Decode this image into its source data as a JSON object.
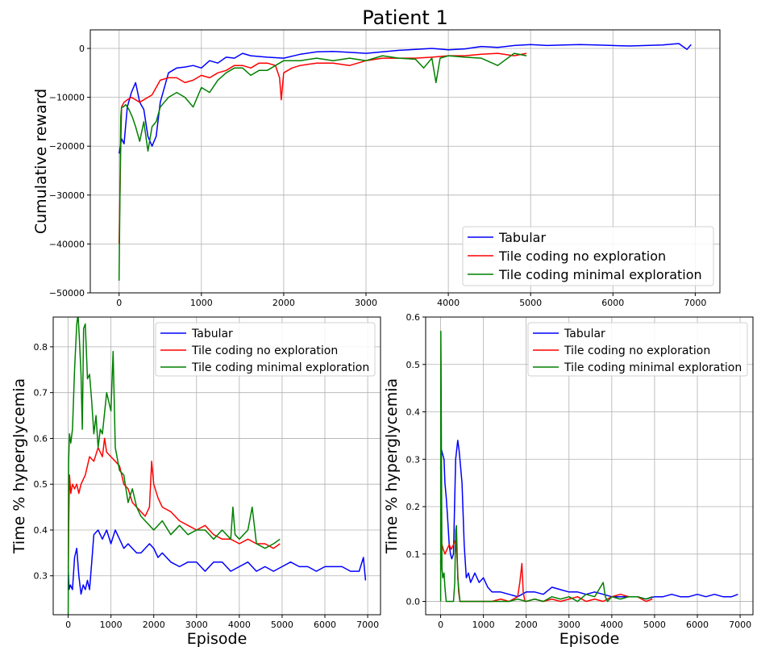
{
  "chart_data": [
    {
      "type": "line",
      "title": "Patient 1",
      "xlabel": "",
      "ylabel": "Cumulative reward",
      "xlim": [
        -350,
        7300
      ],
      "ylim": [
        -50000,
        3800
      ],
      "xticks": [
        "0",
        "1000",
        "2000",
        "3000",
        "4000",
        "5000",
        "6000",
        "7000"
      ],
      "yticks": [
        "−50000",
        "−40000",
        "−30000",
        "−20000",
        "−10000",
        "0"
      ],
      "xtick_values": [
        0,
        1000,
        2000,
        3000,
        4000,
        5000,
        6000,
        7000
      ],
      "ytick_values": [
        -50000,
        -40000,
        -30000,
        -20000,
        -10000,
        0
      ],
      "grid": true,
      "legend": "bottom-right",
      "series": [
        {
          "name": "Tabular",
          "color": "#0000ff",
          "x": [
            0,
            30,
            60,
            100,
            150,
            200,
            250,
            300,
            350,
            400,
            450,
            500,
            600,
            700,
            800,
            900,
            1000,
            1100,
            1200,
            1300,
            1400,
            1500,
            1600,
            1800,
            2000,
            2200,
            2400,
            2600,
            2800,
            3000,
            3200,
            3400,
            3600,
            3800,
            4000,
            4200,
            4400,
            4600,
            4800,
            5000,
            5200,
            5400,
            5600,
            5800,
            6000,
            6200,
            6400,
            6600,
            6800,
            6900,
            6950
          ],
          "y": [
            -21500,
            -18500,
            -19500,
            -12000,
            -9000,
            -7000,
            -11000,
            -12500,
            -18000,
            -20000,
            -18000,
            -11000,
            -5000,
            -4000,
            -3800,
            -3500,
            -4000,
            -2500,
            -3000,
            -1800,
            -2000,
            -1000,
            -1500,
            -1800,
            -2000,
            -1200,
            -700,
            -600,
            -800,
            -1000,
            -700,
            -400,
            -200,
            0,
            -300,
            -100,
            400,
            200,
            600,
            800,
            600,
            700,
            800,
            700,
            600,
            500,
            600,
            700,
            1000,
            -200,
            800
          ]
        },
        {
          "name": "Tile coding no exploration",
          "color": "#ff0000",
          "x": [
            0,
            10,
            20,
            30,
            60,
            100,
            150,
            200,
            250,
            300,
            400,
            500,
            600,
            700,
            800,
            900,
            1000,
            1100,
            1200,
            1300,
            1400,
            1500,
            1600,
            1700,
            1800,
            1900,
            1950,
            1970,
            2000,
            2100,
            2200,
            2400,
            2600,
            2800,
            3000,
            3200,
            3400,
            3600,
            3800,
            4000,
            4200,
            4400,
            4600,
            4800,
            4950
          ],
          "y": [
            -40000,
            -30000,
            -20000,
            -12000,
            -11000,
            -10500,
            -10000,
            -10500,
            -11000,
            -10500,
            -9500,
            -6500,
            -6000,
            -6000,
            -7000,
            -6500,
            -5500,
            -6000,
            -5000,
            -4500,
            -3500,
            -3500,
            -4000,
            -3000,
            -3000,
            -3500,
            -6000,
            -10500,
            -5000,
            -4000,
            -3500,
            -3000,
            -3000,
            -3500,
            -2500,
            -2000,
            -2000,
            -2000,
            -1800,
            -1500,
            -1500,
            -1200,
            -1000,
            -1500,
            -1000
          ]
        },
        {
          "name": "Tile coding minimal exploration",
          "color": "#008000",
          "x": [
            0,
            10,
            20,
            30,
            50,
            80,
            120,
            160,
            200,
            250,
            300,
            350,
            400,
            450,
            500,
            550,
            600,
            700,
            800,
            900,
            1000,
            1100,
            1200,
            1300,
            1400,
            1500,
            1600,
            1700,
            1800,
            1900,
            2000,
            2200,
            2400,
            2600,
            2800,
            3000,
            3200,
            3400,
            3600,
            3700,
            3800,
            3850,
            3900,
            4000,
            4200,
            4400,
            4600,
            4800,
            4950
          ],
          "y": [
            -47500,
            -30000,
            -14000,
            -12000,
            -12000,
            -11500,
            -12500,
            -14000,
            -16000,
            -19000,
            -15000,
            -21000,
            -16000,
            -15000,
            -12000,
            -11000,
            -10000,
            -9000,
            -10000,
            -12000,
            -8000,
            -9000,
            -6500,
            -5000,
            -4000,
            -4000,
            -5500,
            -4500,
            -4500,
            -3500,
            -2500,
            -2500,
            -2000,
            -2500,
            -2000,
            -2500,
            -1500,
            -2000,
            -2200,
            -4000,
            -2000,
            -7000,
            -2000,
            -1500,
            -1800,
            -2000,
            -3500,
            -1000,
            -1500
          ]
        }
      ]
    },
    {
      "type": "line",
      "title": "",
      "xlabel": "Episode",
      "ylabel": "Time % hyperglycemia",
      "xlim": [
        -350,
        7300
      ],
      "ylim": [
        0.215,
        0.865
      ],
      "xticks": [
        "0",
        "1000",
        "2000",
        "3000",
        "4000",
        "5000",
        "6000",
        "7000"
      ],
      "yticks": [
        "0.3",
        "0.4",
        "0.5",
        "0.6",
        "0.7",
        "0.8"
      ],
      "xtick_values": [
        0,
        1000,
        2000,
        3000,
        4000,
        5000,
        6000,
        7000
      ],
      "ytick_values": [
        0.3,
        0.4,
        0.5,
        0.6,
        0.7,
        0.8
      ],
      "grid": true,
      "legend": "top-right",
      "series": [
        {
          "name": "Tabular",
          "color": "#0000ff",
          "x": [
            0,
            20,
            50,
            100,
            150,
            200,
            250,
            300,
            350,
            400,
            450,
            500,
            550,
            600,
            700,
            800,
            900,
            1000,
            1100,
            1200,
            1300,
            1400,
            1500,
            1600,
            1700,
            1800,
            1900,
            2000,
            2100,
            2200,
            2400,
            2600,
            2800,
            3000,
            3200,
            3400,
            3600,
            3800,
            4000,
            4200,
            4400,
            4600,
            4800,
            5000,
            5200,
            5400,
            5600,
            5800,
            6000,
            6200,
            6400,
            6600,
            6800,
            6900,
            6950
          ],
          "y": [
            0.32,
            0.27,
            0.28,
            0.27,
            0.34,
            0.36,
            0.3,
            0.26,
            0.28,
            0.27,
            0.29,
            0.27,
            0.33,
            0.39,
            0.4,
            0.38,
            0.4,
            0.37,
            0.4,
            0.38,
            0.36,
            0.37,
            0.36,
            0.35,
            0.35,
            0.36,
            0.37,
            0.36,
            0.34,
            0.35,
            0.33,
            0.32,
            0.33,
            0.33,
            0.31,
            0.33,
            0.33,
            0.31,
            0.32,
            0.33,
            0.31,
            0.32,
            0.31,
            0.32,
            0.33,
            0.32,
            0.32,
            0.31,
            0.32,
            0.32,
            0.32,
            0.31,
            0.31,
            0.34,
            0.29
          ]
        },
        {
          "name": "Tile coding no exploration",
          "color": "#ff0000",
          "x": [
            0,
            10,
            30,
            60,
            100,
            150,
            200,
            250,
            300,
            400,
            500,
            600,
            700,
            800,
            850,
            900,
            1000,
            1100,
            1200,
            1300,
            1400,
            1500,
            1600,
            1700,
            1800,
            1900,
            1950,
            2000,
            2100,
            2200,
            2400,
            2600,
            2800,
            3000,
            3200,
            3400,
            3600,
            3800,
            4000,
            4200,
            4400,
            4600,
            4800,
            4950
          ],
          "y": [
            0.27,
            0.4,
            0.52,
            0.48,
            0.5,
            0.49,
            0.5,
            0.48,
            0.5,
            0.52,
            0.56,
            0.55,
            0.58,
            0.56,
            0.6,
            0.57,
            0.56,
            0.55,
            0.54,
            0.5,
            0.49,
            0.46,
            0.45,
            0.44,
            0.43,
            0.45,
            0.55,
            0.5,
            0.47,
            0.45,
            0.44,
            0.42,
            0.41,
            0.4,
            0.41,
            0.39,
            0.38,
            0.38,
            0.37,
            0.38,
            0.37,
            0.37,
            0.36,
            0.37
          ]
        },
        {
          "name": "Tile coding minimal exploration",
          "color": "#008000",
          "x": [
            0,
            10,
            30,
            60,
            100,
            150,
            200,
            230,
            260,
            300,
            330,
            360,
            400,
            450,
            500,
            550,
            600,
            650,
            700,
            750,
            800,
            900,
            1000,
            1050,
            1100,
            1200,
            1300,
            1400,
            1500,
            1600,
            1700,
            1800,
            2000,
            2200,
            2400,
            2600,
            2800,
            3000,
            3200,
            3400,
            3600,
            3800,
            3850,
            3900,
            4000,
            4200,
            4300,
            4400,
            4600,
            4800,
            4950
          ],
          "y": [
            0.21,
            0.55,
            0.61,
            0.59,
            0.62,
            0.75,
            0.85,
            0.87,
            0.82,
            0.74,
            0.62,
            0.84,
            0.85,
            0.73,
            0.74,
            0.68,
            0.61,
            0.65,
            0.58,
            0.62,
            0.61,
            0.7,
            0.66,
            0.79,
            0.58,
            0.53,
            0.52,
            0.46,
            0.49,
            0.45,
            0.43,
            0.42,
            0.4,
            0.42,
            0.39,
            0.41,
            0.39,
            0.4,
            0.4,
            0.38,
            0.4,
            0.38,
            0.45,
            0.39,
            0.38,
            0.4,
            0.45,
            0.37,
            0.36,
            0.37,
            0.38
          ]
        }
      ]
    },
    {
      "type": "line",
      "title": "",
      "xlabel": "Episode",
      "ylabel": "Time % hyperglycemia",
      "xlim": [
        -350,
        7300
      ],
      "ylim": [
        -0.028,
        0.6
      ],
      "xticks": [
        "0",
        "1000",
        "2000",
        "3000",
        "4000",
        "5000",
        "6000",
        "7000"
      ],
      "yticks": [
        "0.0",
        "0.1",
        "0.2",
        "0.3",
        "0.4",
        "0.5",
        "0.6"
      ],
      "xtick_values": [
        0,
        1000,
        2000,
        3000,
        4000,
        5000,
        6000,
        7000
      ],
      "ytick_values": [
        0.0,
        0.1,
        0.2,
        0.3,
        0.4,
        0.5,
        0.6
      ],
      "grid": true,
      "legend": "top-right",
      "series": [
        {
          "name": "Tabular",
          "color": "#0000ff",
          "x": [
            0,
            20,
            50,
            80,
            100,
            130,
            160,
            200,
            230,
            260,
            300,
            350,
            400,
            430,
            450,
            500,
            550,
            600,
            650,
            700,
            750,
            800,
            900,
            1000,
            1100,
            1200,
            1400,
            1600,
            1800,
            2000,
            2200,
            2400,
            2600,
            2800,
            3000,
            3200,
            3400,
            3600,
            3800,
            4000,
            4200,
            4400,
            4600,
            4800,
            5000,
            5200,
            5400,
            5600,
            5800,
            6000,
            6200,
            6400,
            6600,
            6800,
            6950
          ],
          "y": [
            0.28,
            0.32,
            0.31,
            0.3,
            0.25,
            0.22,
            0.18,
            0.12,
            0.1,
            0.09,
            0.1,
            0.3,
            0.34,
            0.32,
            0.3,
            0.25,
            0.12,
            0.05,
            0.06,
            0.04,
            0.05,
            0.06,
            0.04,
            0.05,
            0.03,
            0.02,
            0.02,
            0.015,
            0.01,
            0.02,
            0.02,
            0.015,
            0.03,
            0.025,
            0.02,
            0.02,
            0.015,
            0.02,
            0.015,
            0.01,
            0.01,
            0.01,
            0.01,
            0.005,
            0.01,
            0.01,
            0.015,
            0.01,
            0.01,
            0.015,
            0.01,
            0.015,
            0.01,
            0.01,
            0.015
          ]
        },
        {
          "name": "Tile coding no exploration",
          "color": "#ff0000",
          "x": [
            0,
            10,
            30,
            60,
            100,
            150,
            200,
            250,
            300,
            350,
            380,
            420,
            450,
            500,
            600,
            800,
            1000,
            1200,
            1400,
            1600,
            1800,
            1850,
            1900,
            1930,
            1970,
            2000,
            2200,
            2400,
            2600,
            2800,
            3000,
            3200,
            3400,
            3600,
            3800,
            4000,
            4200,
            4400,
            4600,
            4800,
            4950
          ],
          "y": [
            0.08,
            0.11,
            0.12,
            0.11,
            0.1,
            0.11,
            0.12,
            0.11,
            0.12,
            0.13,
            0.1,
            0.02,
            0.0,
            0.0,
            0.0,
            0.0,
            0.0,
            0.0,
            0.005,
            0.0,
            0.01,
            0.04,
            0.08,
            0.02,
            0.0,
            0.0,
            0.005,
            0.0,
            0.005,
            0.0,
            0.005,
            0.01,
            0.0,
            0.005,
            0.0,
            0.01,
            0.015,
            0.01,
            0.01,
            0.0,
            0.005
          ]
        },
        {
          "name": "Tile coding minimal exploration",
          "color": "#008000",
          "x": [
            0,
            5,
            10,
            20,
            30,
            50,
            80,
            100,
            130,
            160,
            200,
            250,
            300,
            330,
            350,
            370,
            400,
            450,
            500,
            600,
            800,
            1000,
            1200,
            1400,
            1600,
            1800,
            2000,
            2200,
            2400,
            2600,
            2800,
            3000,
            3200,
            3400,
            3600,
            3800,
            3850,
            3900,
            4000,
            4200,
            4400,
            4600,
            4800,
            4950
          ],
          "y": [
            0.0,
            0.57,
            0.5,
            0.3,
            0.07,
            0.05,
            0.06,
            0.03,
            0.0,
            0.0,
            0.0,
            0.0,
            0.0,
            0.04,
            0.15,
            0.16,
            0.05,
            0.0,
            0.0,
            0.0,
            0.0,
            0.0,
            0.0,
            0.0,
            0.0,
            0.005,
            0.0,
            0.005,
            0.0,
            0.01,
            0.005,
            0.01,
            0.0,
            0.015,
            0.01,
            0.04,
            0.01,
            0.0,
            0.01,
            0.005,
            0.01,
            0.01,
            0.005,
            0.01
          ]
        }
      ]
    }
  ]
}
